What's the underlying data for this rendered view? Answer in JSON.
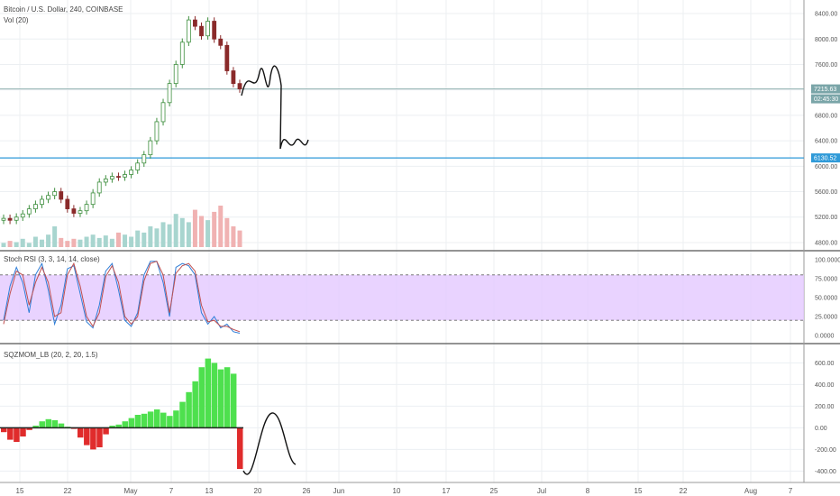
{
  "panels": {
    "price": {
      "title": "Bitcoin / U.S. Dollar, 240, COINBASE",
      "volume_label": "Vol (20)"
    },
    "stoch": {
      "title": "Stoch RSI (3, 3, 14, 14, close)"
    },
    "momentum": {
      "title": "SQZMOM_LB (20, 2, 20, 1.5)"
    }
  },
  "price_tags": [
    {
      "value": "7215.63",
      "color": "#7aa5a8"
    },
    {
      "value": "02:45:30",
      "color": "#7aa5a8"
    },
    {
      "value": "6130.52",
      "color": "#2f9ad8"
    }
  ],
  "colors": {
    "up": "#3f8f3f",
    "down": "#8a2a2a",
    "hline_gray": "#8fb0b0",
    "hline_blue": "#2f9ad8",
    "stoch_band": "#e4c8ff",
    "stoch_k": "#2f7ed8",
    "stoch_d": "#c05050",
    "mom_green": "#4ee04e",
    "mom_red": "#e02c2c"
  },
  "chart_data": [
    {
      "type": "candlestick",
      "title": "Bitcoin / U.S. Dollar, 240, COINBASE",
      "ylim": [
        4700,
        8500
      ],
      "yticks": [
        "8400.00",
        "8000.00",
        "7600.00",
        "7200.00",
        "6800.00",
        "6400.00",
        "6000.00",
        "5600.00",
        "5200.00",
        "4800.00"
      ],
      "xticks": [
        "15",
        "22",
        "May",
        "7",
        "13",
        "20",
        "26",
        "Jun",
        "10",
        "17",
        "25",
        "Jul",
        "8",
        "15",
        "22",
        "Aug",
        "7"
      ],
      "close_path": [
        5180,
        5150,
        5200,
        5250,
        5330,
        5400,
        5480,
        5540,
        5600,
        5480,
        5330,
        5260,
        5300,
        5400,
        5580,
        5750,
        5800,
        5840,
        5830,
        5870,
        5940,
        6050,
        6180,
        6400,
        6700,
        7000,
        7300,
        7600,
        7950,
        8300,
        8200,
        8050,
        8280,
        8000,
        7900,
        7500,
        7300,
        7215
      ],
      "horizontal_lines": [
        7215.63,
        6130.52
      ],
      "volume_series": [
        0.1,
        0.15,
        0.12,
        0.2,
        0.1,
        0.25,
        0.18,
        0.3,
        0.5,
        0.22,
        0.15,
        0.2,
        0.18,
        0.25,
        0.3,
        0.22,
        0.28,
        0.2,
        0.35,
        0.3,
        0.25,
        0.4,
        0.35,
        0.5,
        0.45,
        0.6,
        0.55,
        0.8,
        0.7,
        0.6,
        0.9,
        0.75,
        0.65,
        0.85,
        1.0,
        0.7,
        0.5,
        0.4
      ]
    },
    {
      "type": "line",
      "title": "Stoch RSI (3, 3, 14, 14, close)",
      "ylim": [
        0,
        100
      ],
      "yticks": [
        "100.0000",
        "75.0000",
        "50.0000",
        "25.0000",
        "0.0000"
      ],
      "band": [
        20,
        80
      ],
      "series": [
        {
          "name": "",
          "values": [
            20,
            65,
            90,
            70,
            30,
            80,
            95,
            60,
            15,
            40,
            88,
            92,
            55,
            18,
            10,
            40,
            85,
            95,
            60,
            20,
            12,
            30,
            80,
            98,
            98,
            70,
            25,
            90,
            95,
            92,
            80,
            30,
            15,
            25,
            10,
            15,
            5,
            3
          ]
        },
        {
          "name": "",
          "values": [
            15,
            55,
            85,
            80,
            40,
            70,
            90,
            70,
            25,
            30,
            80,
            95,
            65,
            25,
            12,
            30,
            78,
            92,
            70,
            25,
            15,
            25,
            72,
            95,
            98,
            80,
            30,
            82,
            92,
            95,
            85,
            40,
            18,
            20,
            12,
            12,
            8,
            5
          ]
        }
      ]
    },
    {
      "type": "bar",
      "title": "SQZMOM_LB (20, 2, 20, 1.5)",
      "ylim": [
        -480,
        720
      ],
      "yticks": [
        "600.00",
        "400.00",
        "200.00",
        "0.00",
        "-200.00",
        "-400.00"
      ],
      "values": [
        -40,
        -110,
        -130,
        -80,
        -20,
        20,
        60,
        80,
        70,
        40,
        10,
        -10,
        -90,
        -160,
        -200,
        -180,
        -60,
        20,
        30,
        60,
        90,
        120,
        130,
        150,
        170,
        140,
        110,
        160,
        240,
        330,
        430,
        560,
        640,
        600,
        540,
        560,
        500,
        -380
      ]
    }
  ]
}
